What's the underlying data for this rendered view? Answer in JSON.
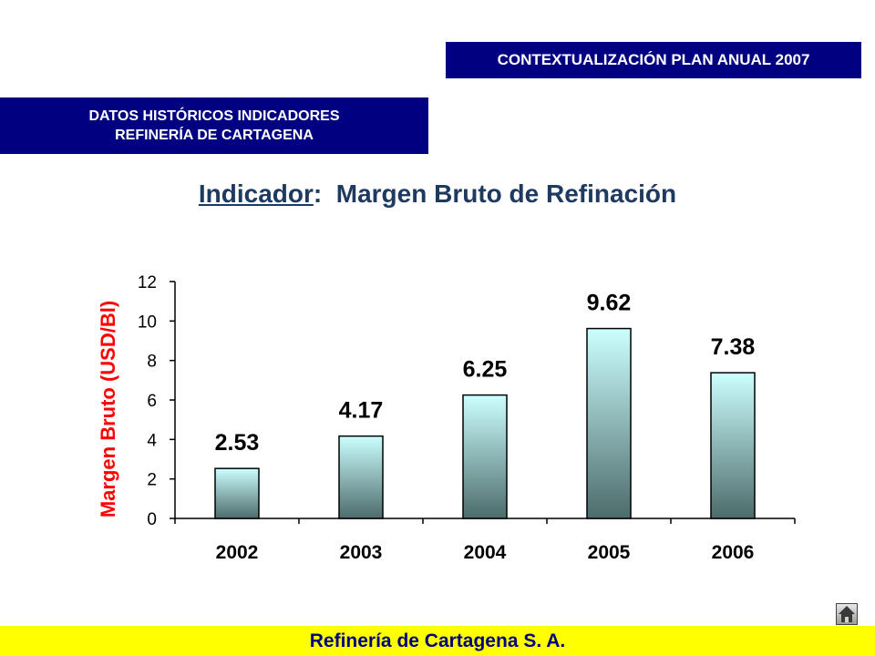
{
  "header": {
    "top_banner": "CONTEXTUALIZACIÓN PLAN ANUAL 2007",
    "left_banner_line1": "DATOS HISTÓRICOS INDICADORES",
    "left_banner_line2": "REFINERÍA DE CARTAGENA",
    "headline_label": "Indicador",
    "headline_sep": ":",
    "headline_text": "Margen Bruto de Refinación"
  },
  "footer": {
    "text": "Refinería de Cartagena S. A."
  },
  "home_button": {
    "icon": "home-icon"
  },
  "chart_data": {
    "type": "bar",
    "categories": [
      "2002",
      "2003",
      "2004",
      "2005",
      "2006"
    ],
    "values": [
      2.53,
      4.17,
      6.25,
      9.62,
      7.38
    ],
    "data_labels": [
      "2.53",
      "4.17",
      "6.25",
      "9.62",
      "7.38"
    ],
    "ylabel": "Margen Bruto (USD/Bl)",
    "ylim": [
      0,
      12
    ],
    "yticks": [
      0,
      2,
      4,
      6,
      8,
      10,
      12
    ],
    "grid": false,
    "legend": "none",
    "colors": {
      "bar_top": "#ccffff",
      "bar_bottom": "#4d6b6b",
      "ylabel": "#ff0000",
      "axis": "#000000"
    }
  }
}
